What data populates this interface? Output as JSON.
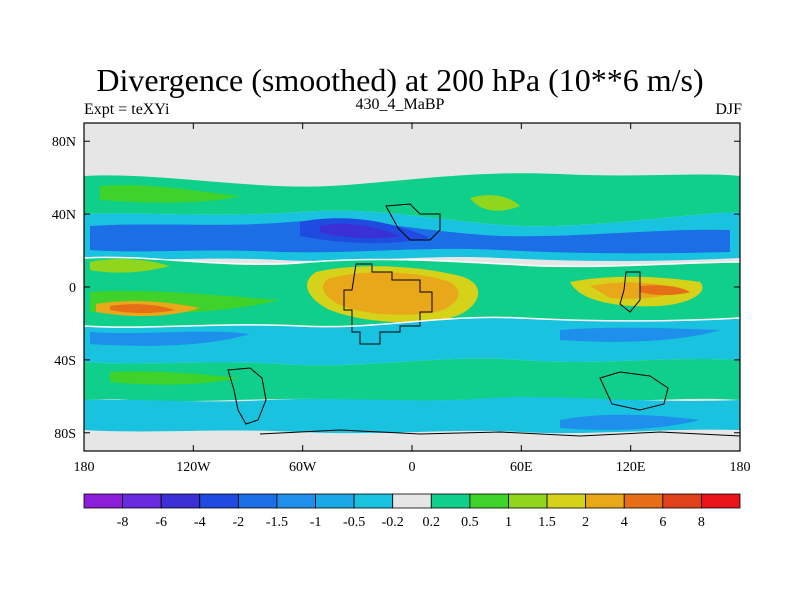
{
  "title": "Divergence (smoothed) at 200 hPa (10**6 m/s)",
  "subtitle_left": "Expt = teXYi",
  "subtitle_center": "430_4_MaBP",
  "subtitle_right": "DJF",
  "chart_data": {
    "type": "heatmap",
    "x_ticks": [
      "180",
      "120W",
      "60W",
      "0",
      "60E",
      "120E",
      "180"
    ],
    "x_tick_values": [
      -180,
      -120,
      -60,
      0,
      60,
      120,
      180
    ],
    "y_ticks": [
      "80N",
      "40N",
      "0",
      "40S",
      "80S"
    ],
    "y_tick_values": [
      80,
      40,
      0,
      -40,
      -80
    ],
    "xlim": [
      -180,
      180
    ],
    "ylim": [
      -90,
      90
    ],
    "colorbar_labels": [
      "-8",
      "-6",
      "-4",
      "-2",
      "-1.5",
      "-1",
      "-0.5",
      "-0.2",
      "0.2",
      "0.5",
      "1",
      "1.5",
      "2",
      "4",
      "6",
      "8"
    ],
    "colorbar_colors": [
      "#8c1ed8",
      "#6a2ae0",
      "#3b2fd6",
      "#1f4be0",
      "#1b6ee6",
      "#1e8fea",
      "#1aa8e6",
      "#19c2de",
      "#e6e6e6",
      "#10cf8a",
      "#3fd22a",
      "#8fd61c",
      "#d6d21a",
      "#e8a81a",
      "#e66e16",
      "#e0401a",
      "#e8141a"
    ]
  },
  "colors": {
    "neutral": "#e6e6e6",
    "coast": "#000000"
  }
}
